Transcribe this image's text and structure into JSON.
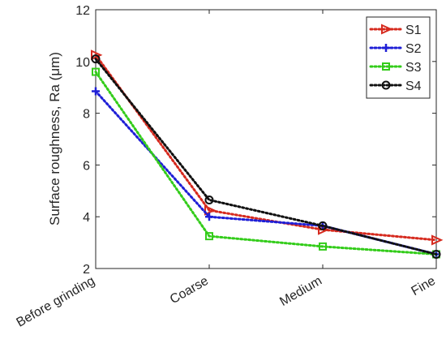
{
  "chart_data": {
    "type": "line",
    "title": "",
    "xlabel": "",
    "ylabel": "Surface roughness, Ra (μm)",
    "categories": [
      "Before grinding",
      "Coarse",
      "Medium",
      "Fine"
    ],
    "ylim": [
      2,
      12
    ],
    "yticks": [
      2,
      4,
      6,
      8,
      10,
      12
    ],
    "grid": false,
    "legend_position": "top-right",
    "series": [
      {
        "name": "S1",
        "values": [
          10.25,
          4.25,
          3.5,
          3.1
        ],
        "color": "#d62a1e",
        "marker": "triangle-right"
      },
      {
        "name": "S2",
        "values": [
          8.85,
          4.0,
          3.65,
          2.55
        ],
        "color": "#1f1fd6",
        "marker": "plus"
      },
      {
        "name": "S3",
        "values": [
          9.6,
          3.25,
          2.85,
          2.55
        ],
        "color": "#33cc1a",
        "marker": "square"
      },
      {
        "name": "S4",
        "values": [
          10.1,
          4.65,
          3.65,
          2.55
        ],
        "color": "#111111",
        "marker": "circle"
      }
    ]
  }
}
